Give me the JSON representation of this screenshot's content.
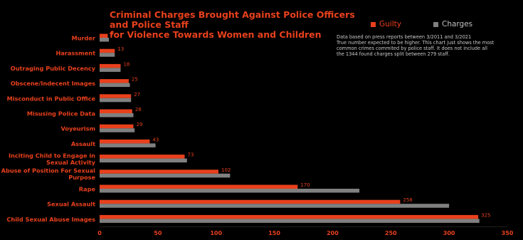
{
  "chart_data": {
    "type": "bar",
    "orientation": "horizontal",
    "title_lines": [
      "Criminal Charges Brought Against Police Officers and Police Staff",
      "for Violence Towards Women and Children"
    ],
    "categories": [
      [
        "Murder"
      ],
      [
        "Harassment"
      ],
      [
        "Outraging Public Decency"
      ],
      [
        "Obscene/Indecent Images"
      ],
      [
        "Misconduct in Public Office"
      ],
      [
        "Misusing Police Data"
      ],
      [
        "Voyeurism"
      ],
      [
        "Assault"
      ],
      [
        "Inciting Child to Engage in",
        "Sexual Activity"
      ],
      [
        "Abuse of Position For Sexual",
        "Purpose"
      ],
      [
        "Rape"
      ],
      [
        "Sexual Assault"
      ],
      [
        "Child Sexual Abuse Images"
      ]
    ],
    "series": [
      {
        "name": "Guilty",
        "color": "#e8401c",
        "values": [
          7,
          13,
          18,
          25,
          27,
          28,
          29,
          43,
          73,
          102,
          170,
          258,
          325
        ]
      },
      {
        "name": "Charges",
        "color": "#808080",
        "values": [
          8,
          13,
          18,
          26,
          27,
          29,
          30,
          48,
          75,
          112,
          223,
          300,
          326
        ]
      }
    ],
    "data_labels": [
      7,
      13,
      18,
      25,
      27,
      28,
      29,
      43,
      73,
      102,
      170,
      258,
      325
    ],
    "xlim": [
      0,
      350
    ],
    "xticks": [
      0,
      50,
      100,
      150,
      200,
      250,
      300,
      350
    ],
    "grid": false,
    "legend_position": "top-right",
    "note_lines": [
      "Data based on press reports between 3/2011 and 3/2021",
      "True number expected to be higher. This chart just shows the most",
      "common crimes commited by police staff. It does not include all",
      "the 1344 found charges split between 279 staff."
    ]
  }
}
